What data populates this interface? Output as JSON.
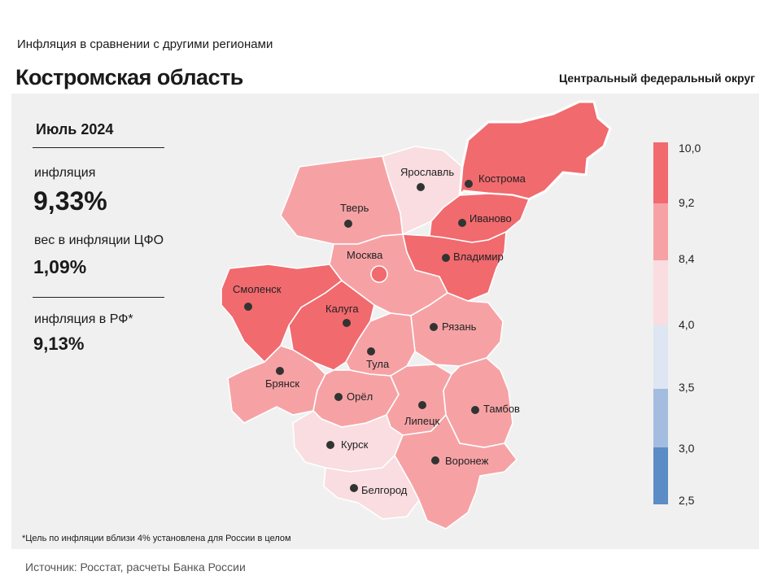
{
  "header": {
    "subtitle": "Инфляция  в сравнении  с другими  регионами",
    "title": "Костромская область",
    "okrug": "Центральный федеральный округ"
  },
  "stats": {
    "period": "Июль 2024",
    "inflation_label": "инфляция",
    "inflation_value": "9,33%",
    "weight_label": "вес в инфляции  ЦФО",
    "weight_value": "1,09%",
    "rf_label": "инфляция  в РФ*",
    "rf_value": "9,13%"
  },
  "footnote": "*Цель по инфляции вблизи 4% установлена для России в целом",
  "source": "Источник: Росстат, расчеты Банка России",
  "colors": {
    "band_9_2_10": "#f16a6e",
    "band_8_4_9_2": "#f6a2a5",
    "band_4_8_4": "#f9dde0",
    "band_3_5_4": "#dde6f2",
    "band_3_3_5": "#a4bcdf",
    "band_2_5_3": "#5b8cc6",
    "background": "#f0f0f0"
  },
  "scale": {
    "ticks": [
      "10,0",
      "9,2",
      "8,4",
      "4,0",
      "3,5",
      "3,0",
      "2,5"
    ]
  },
  "regions": [
    {
      "name": "Кострома",
      "band": "9.2-10",
      "selected": true
    },
    {
      "name": "Ярославль",
      "band": "4-8.4"
    },
    {
      "name": "Тверь",
      "band": "8.4-9.2"
    },
    {
      "name": "Иваново",
      "band": "9.2-10"
    },
    {
      "name": "Москва",
      "band": "8.4-9.2"
    },
    {
      "name": "Владимир",
      "band": "9.2-10"
    },
    {
      "name": "Смоленск",
      "band": "9.2-10"
    },
    {
      "name": "Калуга",
      "band": "9.2-10"
    },
    {
      "name": "Рязань",
      "band": "8.4-9.2"
    },
    {
      "name": "Тула",
      "band": "8.4-9.2"
    },
    {
      "name": "Брянск",
      "band": "8.4-9.2"
    },
    {
      "name": "Орёл",
      "band": "8.4-9.2"
    },
    {
      "name": "Липецк",
      "band": "8.4-9.2"
    },
    {
      "name": "Тамбов",
      "band": "8.4-9.2"
    },
    {
      "name": "Курск",
      "band": "4-8.4"
    },
    {
      "name": "Воронеж",
      "band": "8.4-9.2"
    },
    {
      "name": "Белгород",
      "band": "4-8.4"
    }
  ]
}
